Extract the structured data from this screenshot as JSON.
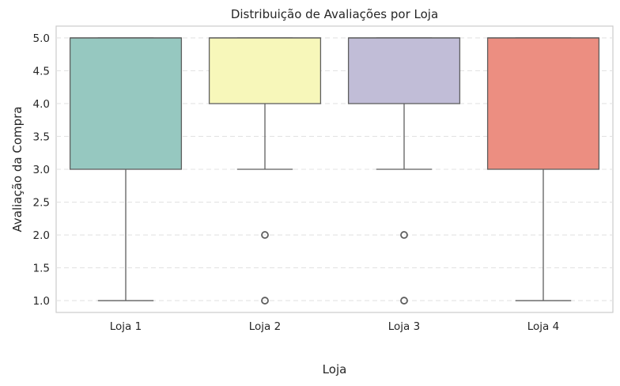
{
  "chart_data": {
    "type": "box",
    "title": "Distribuição de Avaliações por Loja",
    "xlabel": "Loja",
    "ylabel": "Avaliação da Compra",
    "ylim": [
      0.82,
      5.18
    ],
    "yticks": [
      "1.0",
      "1.5",
      "2.0",
      "2.5",
      "3.0",
      "3.5",
      "4.0",
      "4.5",
      "5.0"
    ],
    "grid": "y-dashed",
    "categories": [
      "Loja 1",
      "Loja 2",
      "Loja 3",
      "Loja 4"
    ],
    "boxes": [
      {
        "category": "Loja 1",
        "whisker_low": 1,
        "q1": 3,
        "median": 5,
        "q3": 5,
        "whisker_high": 5,
        "outliers": [],
        "color": "#96c8c0"
      },
      {
        "category": "Loja 2",
        "whisker_low": 3,
        "q1": 4,
        "median": 5,
        "q3": 5,
        "whisker_high": 5,
        "outliers": [
          2,
          1
        ],
        "color": "#f7f7ba"
      },
      {
        "category": "Loja 3",
        "whisker_low": 3,
        "q1": 4,
        "median": 5,
        "q3": 5,
        "whisker_high": 5,
        "outliers": [
          2,
          1
        ],
        "color": "#c1bdd7"
      },
      {
        "category": "Loja 4",
        "whisker_low": 1,
        "q1": 3,
        "median": 5,
        "q3": 5,
        "whisker_high": 5,
        "outliers": [],
        "color": "#ec8e81"
      }
    ]
  }
}
